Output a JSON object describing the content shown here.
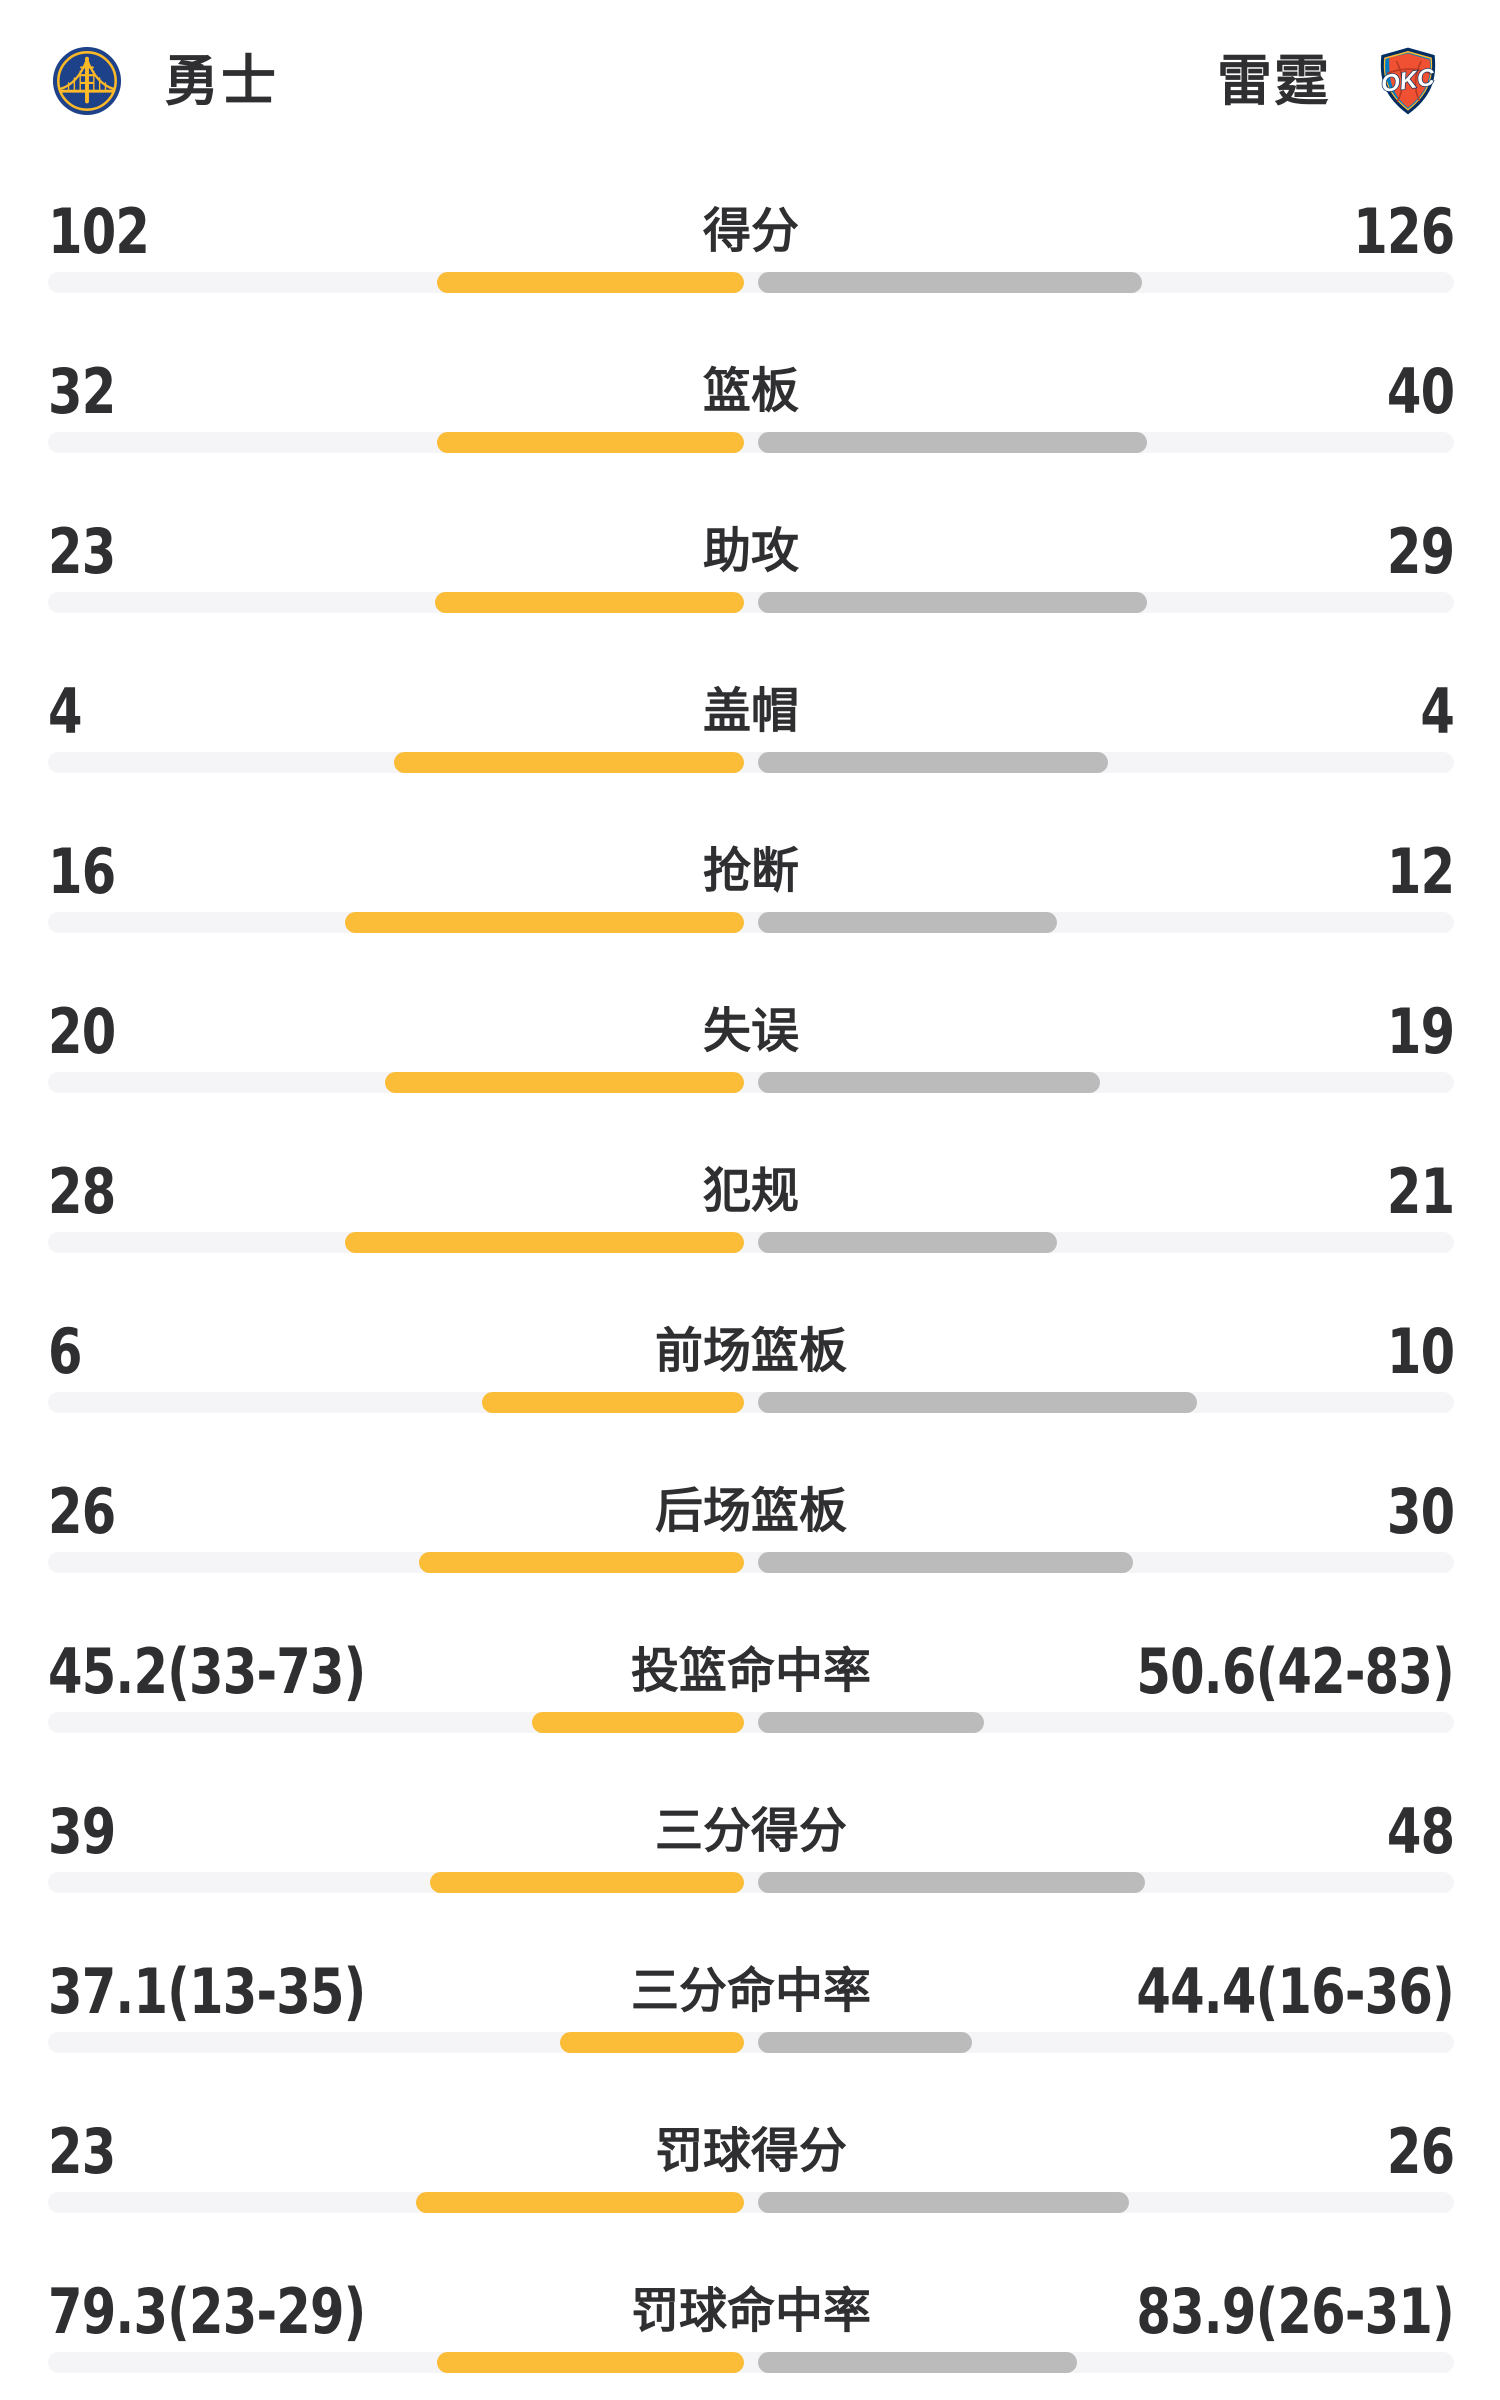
{
  "header": {
    "home_team": {
      "name": "勇士",
      "logo": "warriors-logo"
    },
    "away_team": {
      "name": "雷霆",
      "logo": "okc-logo"
    }
  },
  "colors": {
    "text": "#2F2F31",
    "home_bar": "#FBBD37",
    "away_bar": "#BBBBBB",
    "bar_track": "#F5F5F7",
    "warriors_blue": "#1D428A",
    "warriors_gold": "#FDB927",
    "okc_navy": "#002D62",
    "okc_blue": "#007DC3",
    "okc_orange": "#F05133",
    "okc_yellow": "#FDBB30"
  },
  "stats": [
    {
      "label": "得分",
      "home": "102",
      "away": "126",
      "home_fill": 21.8,
      "away_fill": 27.3
    },
    {
      "label": "篮板",
      "home": "32",
      "away": "40",
      "home_fill": 21.8,
      "away_fill": 27.7
    },
    {
      "label": "助攻",
      "home": "23",
      "away": "29",
      "home_fill": 22.0,
      "away_fill": 27.7
    },
    {
      "label": "盖帽",
      "home": "4",
      "away": "4",
      "home_fill": 24.9,
      "away_fill": 24.9
    },
    {
      "label": "抢断",
      "home": "16",
      "away": "12",
      "home_fill": 28.4,
      "away_fill": 21.3
    },
    {
      "label": "失误",
      "home": "20",
      "away": "19",
      "home_fill": 25.5,
      "away_fill": 24.3
    },
    {
      "label": "犯规",
      "home": "28",
      "away": "21",
      "home_fill": 28.4,
      "away_fill": 21.3
    },
    {
      "label": "前场篮板",
      "home": "6",
      "away": "10",
      "home_fill": 18.6,
      "away_fill": 31.2
    },
    {
      "label": "后场篮板",
      "home": "26",
      "away": "30",
      "home_fill": 23.1,
      "away_fill": 26.7
    },
    {
      "label": "投篮命中率",
      "home": "45.2(33-73)",
      "away": "50.6(42-83)",
      "home_fill": 15.1,
      "away_fill": 16.1
    },
    {
      "label": "三分得分",
      "home": "39",
      "away": "48",
      "home_fill": 22.3,
      "away_fill": 27.5
    },
    {
      "label": "三分命中率",
      "home": "37.1(13-35)",
      "away": "44.4(16-36)",
      "home_fill": 13.1,
      "away_fill": 15.2
    },
    {
      "label": "罚球得分",
      "home": "23",
      "away": "26",
      "home_fill": 23.3,
      "away_fill": 26.4
    },
    {
      "label": "罚球命中率",
      "home": "79.3(23-29)",
      "away": "83.9(26-31)",
      "home_fill": 21.8,
      "away_fill": 22.7
    }
  ],
  "chart_data": {
    "type": "bar",
    "title": "勇士 vs 雷霆",
    "orientation": "horizontal-paired",
    "categories": [
      "得分",
      "篮板",
      "助攻",
      "盖帽",
      "抢断",
      "失误",
      "犯规",
      "前场篮板",
      "后场篮板",
      "投篮命中率",
      "三分得分",
      "三分命中率",
      "罚球得分",
      "罚球命中率"
    ],
    "series": [
      {
        "name": "勇士",
        "color": "#FBBD37",
        "values": [
          102,
          32,
          23,
          4,
          16,
          20,
          28,
          6,
          26,
          45.2,
          39,
          37.1,
          23,
          79.3
        ]
      },
      {
        "name": "雷霆",
        "color": "#BBBBBB",
        "values": [
          126,
          40,
          29,
          4,
          12,
          19,
          21,
          10,
          30,
          50.6,
          48,
          44.4,
          26,
          83.9
        ]
      }
    ],
    "value_annotations": {
      "投篮命中率": {
        "勇士": "33-73",
        "雷霆": "42-83"
      },
      "三分命中率": {
        "勇士": "13-35",
        "雷霆": "16-36"
      },
      "罚球命中率": {
        "勇士": "23-29",
        "雷霆": "26-31"
      }
    },
    "grid": false,
    "legend_position": "top"
  }
}
